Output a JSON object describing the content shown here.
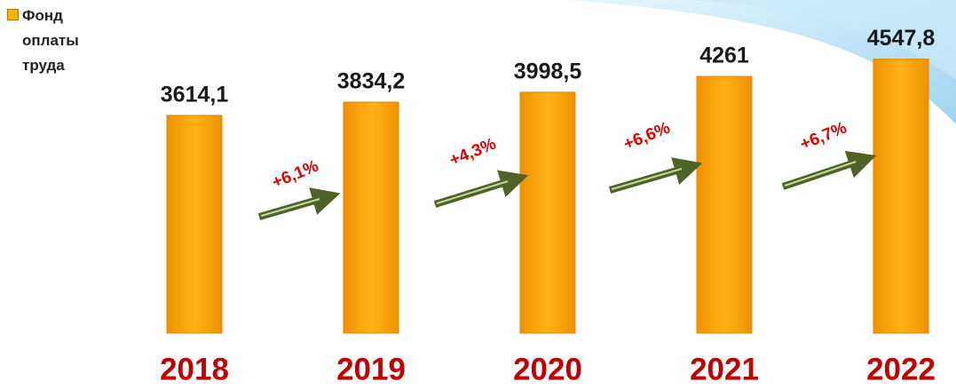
{
  "chart_data": {
    "type": "bar",
    "series": [
      {
        "name": "Фонд оплаты труда",
        "color": "#ffa500",
        "values": [
          3614.1,
          3834.2,
          3998.5,
          4261,
          4547.8
        ],
        "value_labels": [
          "3614,1",
          "3834,2",
          "3998,5",
          "4261",
          "4547,8"
        ]
      }
    ],
    "categories": [
      "2018",
      "2019",
      "2020",
      "2021",
      "2022"
    ],
    "annotations": [
      "+6,1%",
      "+4,3%",
      "+6,6%",
      "+6,7%"
    ],
    "ylim": [
      0,
      5500
    ]
  }
}
